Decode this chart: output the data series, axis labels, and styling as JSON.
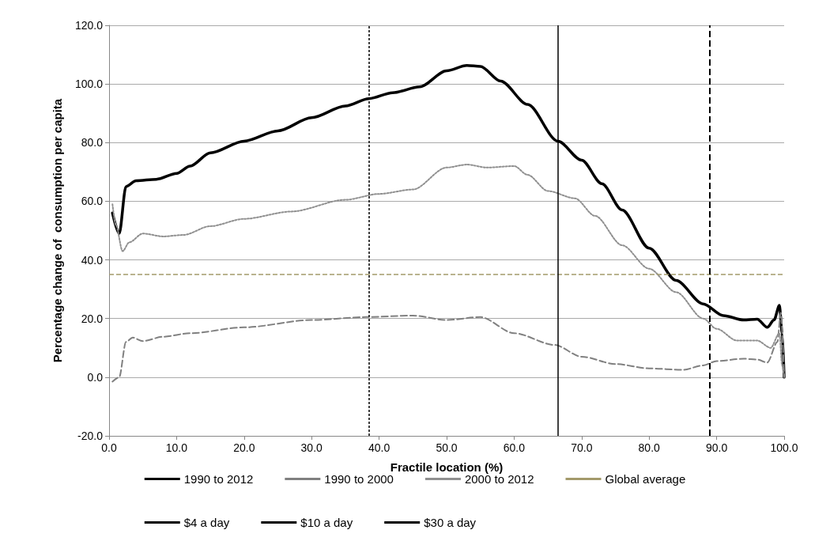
{
  "chart_data": {
    "type": "line",
    "xlabel": "Fractile location (%)",
    "ylabel": "Percentage change of  consumption per capita",
    "xlim": [
      0,
      100
    ],
    "ylim": [
      -20,
      120
    ],
    "xticks": [
      {
        "value": 0,
        "label": "0.0"
      },
      {
        "value": 10,
        "label": "10.0"
      },
      {
        "value": 20,
        "label": "20.0"
      },
      {
        "value": 30,
        "label": "30.0"
      },
      {
        "value": 40,
        "label": "40.0"
      },
      {
        "value": 50,
        "label": "50.0"
      },
      {
        "value": 60,
        "label": "60.0"
      },
      {
        "value": 70,
        "label": "70.0"
      },
      {
        "value": 80,
        "label": "80.0"
      },
      {
        "value": 90,
        "label": "90.0"
      },
      {
        "value": 100,
        "label": "100.0"
      }
    ],
    "yticks": [
      {
        "value": -20,
        "label": "-20.0"
      },
      {
        "value": 0,
        "label": "0.0"
      },
      {
        "value": 20,
        "label": "20.0"
      },
      {
        "value": 40,
        "label": "40.0"
      },
      {
        "value": 60,
        "label": "60.0"
      },
      {
        "value": 80,
        "label": "80.0"
      },
      {
        "value": 100,
        "label": "100.0"
      },
      {
        "value": 120,
        "label": "120.0"
      }
    ],
    "grid": "y",
    "legend": "bottom",
    "marker": "none",
    "series": [
      {
        "name": "1990 to 2012",
        "color": "#000000",
        "line_style": "solid",
        "x": [
          0.5,
          1.5,
          2.5,
          4,
          7,
          10,
          12,
          15,
          20,
          25,
          30,
          35,
          38.5,
          42,
          46,
          50,
          53,
          55,
          58,
          62,
          66.5,
          70,
          73,
          76,
          80,
          84,
          88,
          91,
          94,
          96,
          97.5,
          98.5,
          99.3,
          99.7,
          100
        ],
        "values": [
          56,
          49,
          65,
          67,
          67.5,
          69.5,
          72,
          76.5,
          80.5,
          84,
          88.5,
          92.5,
          95,
          97,
          99,
          104.5,
          106.3,
          106,
          101,
          93,
          80.5,
          74,
          66,
          57,
          44,
          33,
          25,
          21,
          19.5,
          19.8,
          17,
          19.5,
          24.5,
          15,
          0
        ]
      },
      {
        "name": "1990 to 2000",
        "color": "#808080",
        "line_style": "dashed",
        "x": [
          0.5,
          1.5,
          2.5,
          3.5,
          5,
          8,
          12,
          20,
          30,
          38,
          45,
          50,
          55,
          60,
          66,
          70,
          75,
          80,
          85,
          88,
          90,
          94,
          96,
          97.5,
          99,
          99.5,
          100
        ],
        "values": [
          -1.5,
          0,
          12,
          13.5,
          12.3,
          13.8,
          15,
          17,
          19.5,
          20.5,
          21,
          19.5,
          20.5,
          15,
          11,
          7,
          4.5,
          3,
          2.5,
          4,
          5.5,
          6.3,
          6,
          5,
          12,
          22,
          0
        ]
      },
      {
        "name": "2000 to 2012",
        "color": "#909090",
        "line_style": "dotted",
        "x": [
          0.5,
          1,
          2,
          3,
          5,
          8,
          11,
          15,
          20,
          27,
          35,
          40,
          45,
          50,
          53,
          56,
          60,
          62,
          65,
          69,
          72,
          76,
          80,
          84,
          88,
          90,
          93,
          96,
          98,
          99.3,
          99.7,
          100
        ],
        "values": [
          59,
          52,
          43,
          46,
          49,
          48,
          48.5,
          51.5,
          54,
          56.5,
          60.5,
          62.5,
          64,
          71.5,
          72.5,
          71.5,
          72,
          69,
          63.5,
          61,
          55,
          45,
          37,
          29,
          20,
          16.5,
          12.5,
          12.5,
          10,
          15,
          4,
          0
        ]
      }
    ],
    "ref_lines": [
      {
        "axis": "y",
        "value": 35,
        "label": "Global average",
        "color": "#a39a6b",
        "line_style": "dashed"
      },
      {
        "axis": "x",
        "value": 38.5,
        "label": "$4 a day",
        "color": "#000000",
        "line_style": "dotted"
      },
      {
        "axis": "x",
        "value": 66.5,
        "label": "$10 a day",
        "color": "#000000",
        "line_style": "solid"
      },
      {
        "axis": "x",
        "value": 89,
        "label": "$30 a day",
        "color": "#000000",
        "line_style": "dashed"
      }
    ]
  }
}
